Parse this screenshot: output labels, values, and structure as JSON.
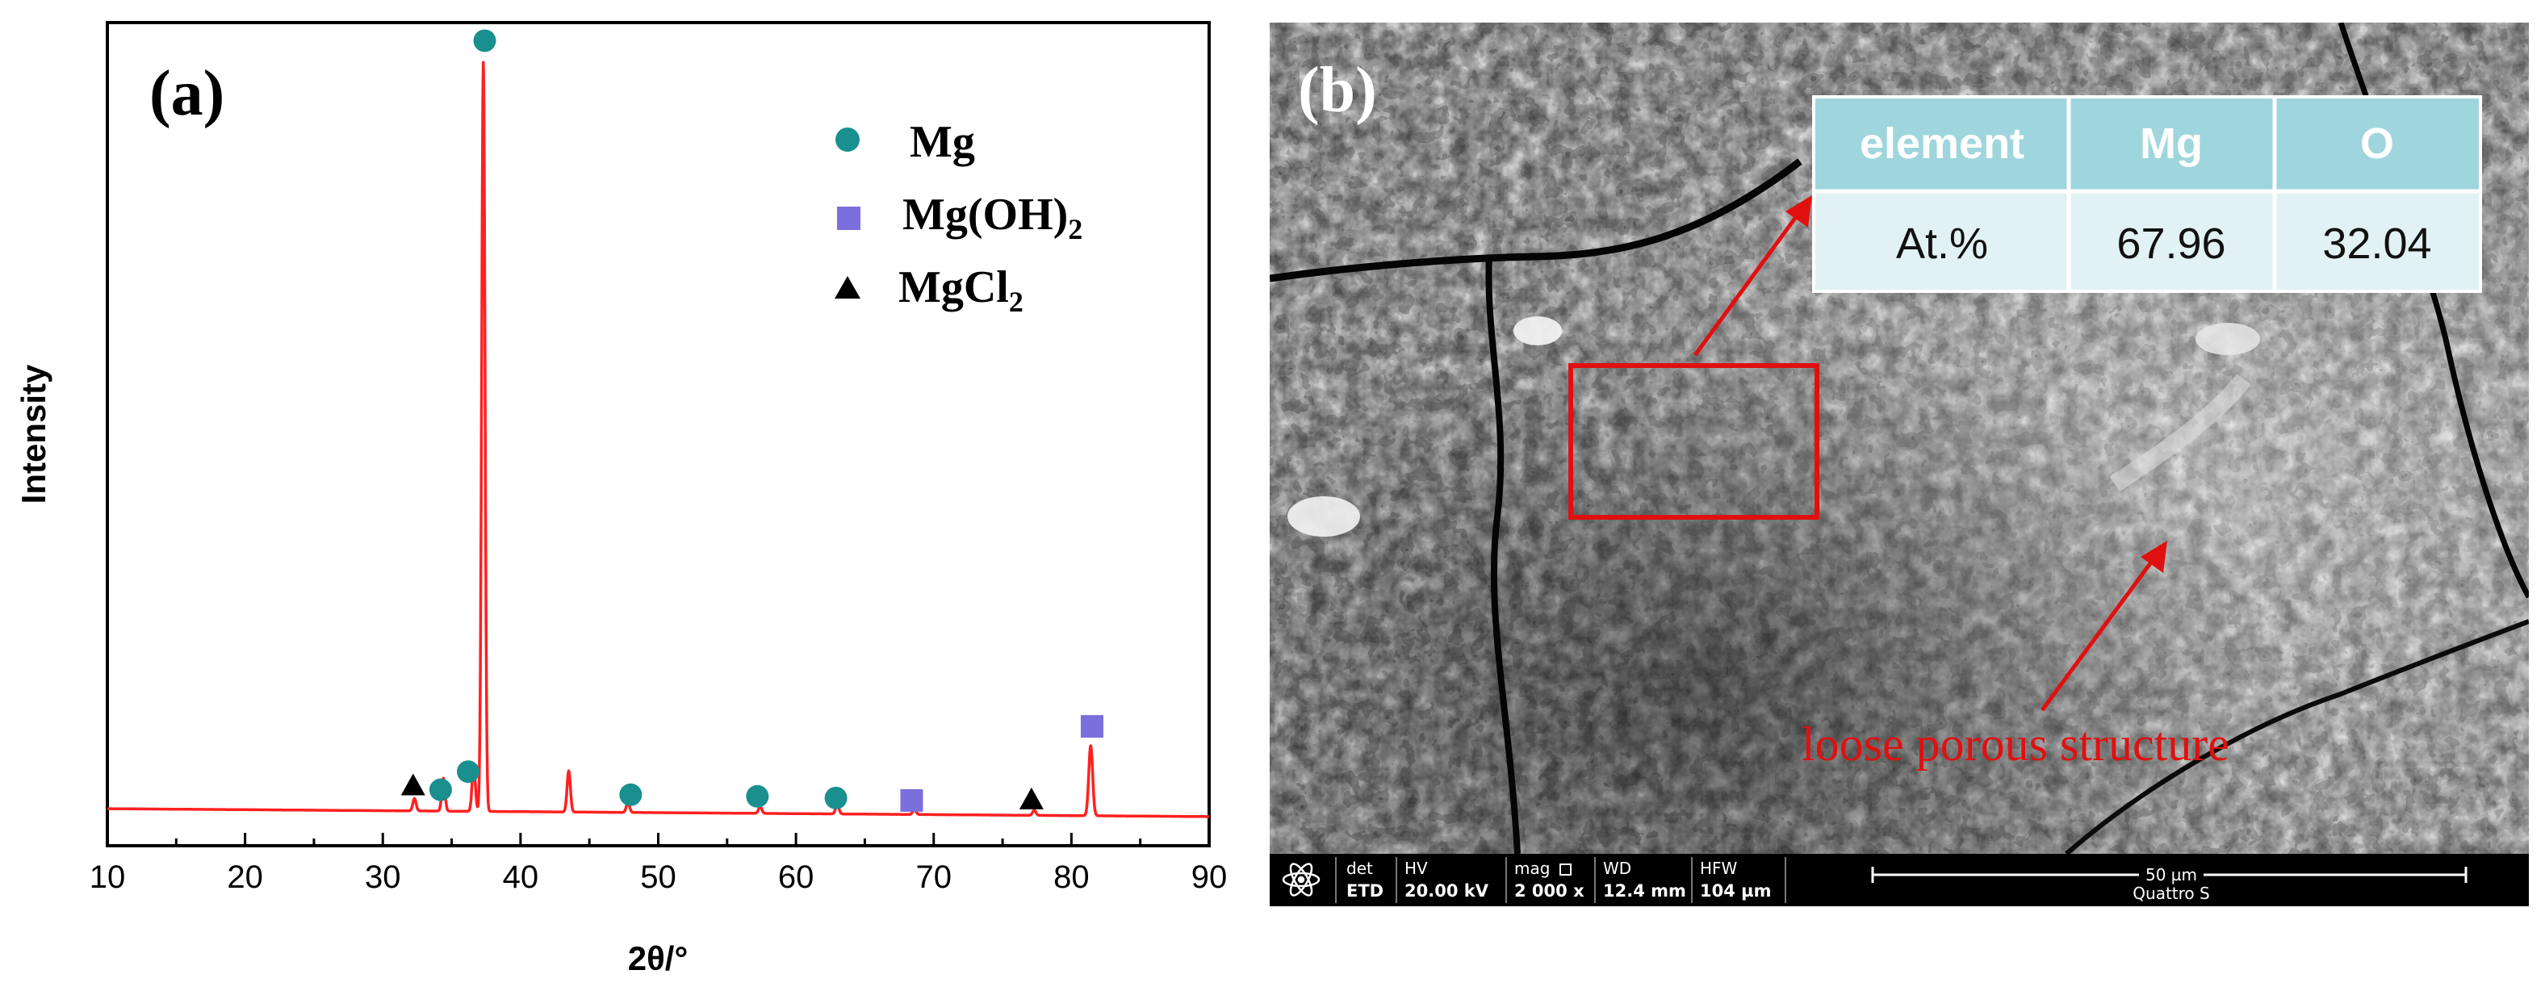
{
  "panel_a": {
    "label": "(a)",
    "legend": [
      {
        "marker": "circle",
        "name": "Mg"
      },
      {
        "marker": "square",
        "name_main": "Mg(OH)",
        "name_sub": "2"
      },
      {
        "marker": "triangle",
        "name_main": "MgCl",
        "name_sub": "2"
      }
    ]
  },
  "chart_data": {
    "type": "line",
    "title": "",
    "xlabel": "2θ/°",
    "ylabel": "Intensity",
    "xlim": [
      10,
      90
    ],
    "ylim": [
      0,
      100
    ],
    "xticks": [
      10,
      20,
      30,
      40,
      50,
      60,
      70,
      80,
      90
    ],
    "colors": {
      "line": "#ff2020",
      "circle": "#1a8f8f",
      "square": "#7a6fdc",
      "triangle": "#000000"
    },
    "baseline": 4.5,
    "peaks": [
      {
        "x": 32.3,
        "h": 1.5,
        "w": 0.12
      },
      {
        "x": 34.4,
        "h": 4.0,
        "w": 0.12
      },
      {
        "x": 36.6,
        "h": 5.5,
        "w": 0.12
      },
      {
        "x": 37.3,
        "h": 91.0,
        "w": 0.12
      },
      {
        "x": 43.5,
        "h": 5.0,
        "w": 0.12
      },
      {
        "x": 47.8,
        "h": 1.2,
        "w": 0.12
      },
      {
        "x": 57.4,
        "h": 0.8,
        "w": 0.12
      },
      {
        "x": 63.0,
        "h": 1.2,
        "w": 0.12
      },
      {
        "x": 68.6,
        "h": 0.6,
        "w": 0.12
      },
      {
        "x": 77.3,
        "h": 0.6,
        "w": 0.12
      },
      {
        "x": 81.4,
        "h": 8.5,
        "w": 0.14
      }
    ],
    "markers": [
      {
        "type": "triangle",
        "x": 32.2,
        "y": 7.3
      },
      {
        "type": "circle",
        "x": 34.2,
        "y": 6.8
      },
      {
        "type": "circle",
        "x": 36.2,
        "y": 9.0
      },
      {
        "type": "circle",
        "x": 37.4,
        "y": 97.8
      },
      {
        "type": "circle",
        "x": 48.0,
        "y": 6.2
      },
      {
        "type": "circle",
        "x": 57.2,
        "y": 6.0
      },
      {
        "type": "circle",
        "x": 62.9,
        "y": 5.8
      },
      {
        "type": "square",
        "x": 68.4,
        "y": 5.5
      },
      {
        "type": "triangle",
        "x": 77.1,
        "y": 5.6
      },
      {
        "type": "square",
        "x": 81.5,
        "y": 14.5
      }
    ]
  },
  "panel_b": {
    "label": "(b)",
    "table": {
      "headers": [
        "element",
        "Mg",
        "O"
      ],
      "row": [
        "At.%",
        "67.96",
        "32.04"
      ]
    },
    "annotation": "loose porous structure",
    "sem_bar": {
      "det_label": "det",
      "det_value": "ETD",
      "hv_label": "HV",
      "hv_value": "20.00 kV",
      "mag_label": "mag",
      "mag_value": "2 000 x",
      "wd_label": "WD",
      "wd_value": "12.4 mm",
      "hfw_label": "HFW",
      "hfw_value": "104 µm",
      "scale_label": "50 µm",
      "instrument": "Quattro S"
    }
  }
}
